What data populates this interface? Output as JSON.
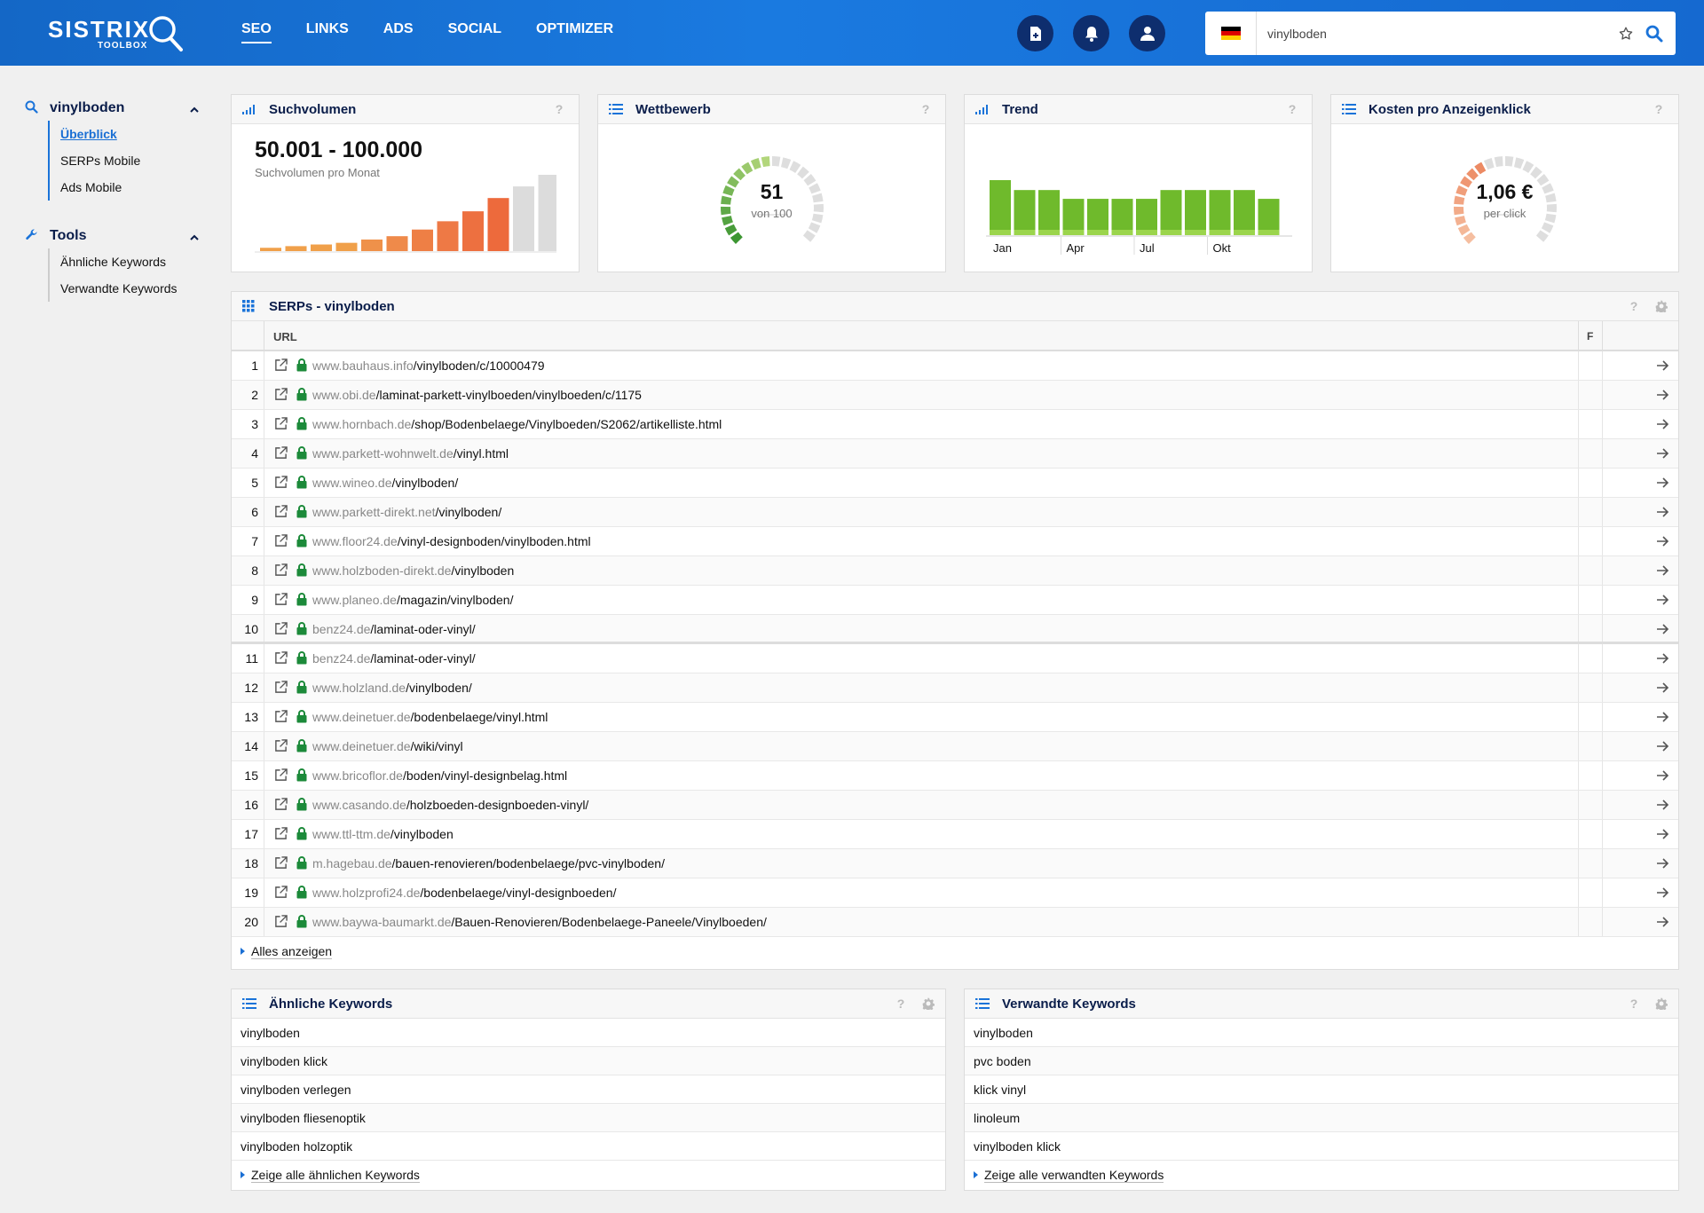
{
  "header": {
    "logo": "SISTRIX",
    "logo_sub": "TOOLBOX",
    "nav": [
      "SEO",
      "LINKS",
      "ADS",
      "SOCIAL",
      "OPTIMIZER"
    ],
    "active_nav": "SEO",
    "search": {
      "value": "vinylboden",
      "country_flag": "de"
    }
  },
  "sidebar": {
    "groups": [
      {
        "title": "vinylboden",
        "icon": "search-icon",
        "items": [
          "Überblick",
          "SERPs Mobile",
          "Ads Mobile"
        ],
        "active": "Überblick"
      },
      {
        "title": "Tools",
        "icon": "wrench-icon",
        "items": [
          "Ähnliche Keywords",
          "Verwandte Keywords"
        ]
      }
    ]
  },
  "widgets": {
    "suchvolumen": {
      "title": "Suchvolumen",
      "value": "50.001 - 100.000",
      "sublabel": "Suchvolumen pro Monat",
      "bar_levels": [
        2,
        3,
        4,
        5,
        7,
        9,
        13,
        18,
        24,
        32,
        39,
        46
      ],
      "bar_colors": [
        "#f0a04a",
        "#f0a04a",
        "#f0a04a",
        "#f0a04a",
        "#ef914a",
        "#ef8a4a",
        "#ee7f45",
        "#ee7945",
        "#ed7040",
        "#ed6a3c",
        "#dcdcdc",
        "#dcdcdc"
      ]
    },
    "wettbewerb": {
      "title": "Wettbewerb",
      "value": "51",
      "sublabel": "von 100",
      "score": 51
    },
    "trend": {
      "title": "Trend",
      "bar_levels": [
        1.0,
        0.82,
        0.82,
        0.66,
        0.66,
        0.66,
        0.66,
        0.82,
        0.82,
        0.82,
        0.82,
        0.66
      ],
      "x_labels": [
        "Jan",
        "Apr",
        "Jul",
        "Okt"
      ]
    },
    "cpc": {
      "title": "Kosten pro Anzeigenklick",
      "value": "1,06 €",
      "sublabel": "per click",
      "fill": 0.42
    }
  },
  "serps": {
    "title": "SERPs - vinylboden",
    "col_url": "URL",
    "col_extra": "F",
    "rows": [
      {
        "rank": "1",
        "domain": "www.bauhaus.info",
        "path": "/vinylboden/c/10000479"
      },
      {
        "rank": "2",
        "domain": "www.obi.de",
        "path": "/laminat-parkett-vinylboeden/vinylboeden/c/1175"
      },
      {
        "rank": "3",
        "domain": "www.hornbach.de",
        "path": "/shop/Bodenbelaege/Vinylboeden/S2062/artikelliste.html"
      },
      {
        "rank": "4",
        "domain": "www.parkett-wohnwelt.de",
        "path": "/vinyl.html"
      },
      {
        "rank": "5",
        "domain": "www.wineo.de",
        "path": "/vinylboden/"
      },
      {
        "rank": "6",
        "domain": "www.parkett-direkt.net",
        "path": "/vinylboden/"
      },
      {
        "rank": "7",
        "domain": "www.floor24.de",
        "path": "/vinyl-designboden/vinylboden.html"
      },
      {
        "rank": "8",
        "domain": "www.holzboden-direkt.de",
        "path": "/vinylboden"
      },
      {
        "rank": "9",
        "domain": "www.planeo.de",
        "path": "/magazin/vinylboden/"
      },
      {
        "rank": "10",
        "domain": "benz24.de",
        "path": "/laminat-oder-vinyl/"
      },
      {
        "rank": "11",
        "domain": "benz24.de",
        "path": "/laminat-oder-vinyl/"
      },
      {
        "rank": "12",
        "domain": "www.holzland.de",
        "path": "/vinylboden/"
      },
      {
        "rank": "13",
        "domain": "www.deinetuer.de",
        "path": "/bodenbelaege/vinyl.html"
      },
      {
        "rank": "14",
        "domain": "www.deinetuer.de",
        "path": "/wiki/vinyl"
      },
      {
        "rank": "15",
        "domain": "www.bricoflor.de",
        "path": "/boden/vinyl-designbelag.html"
      },
      {
        "rank": "16",
        "domain": "www.casando.de",
        "path": "/holzboeden-designboeden-vinyl/"
      },
      {
        "rank": "17",
        "domain": "www.ttl-ttm.de",
        "path": "/vinylboden"
      },
      {
        "rank": "18",
        "domain": "m.hagebau.de",
        "path": "/bauen-renovieren/bodenbelaege/pvc-vinylboden/"
      },
      {
        "rank": "19",
        "domain": "www.holzprofi24.de",
        "path": "/bodenbelaege/vinyl-designboeden/"
      },
      {
        "rank": "20",
        "domain": "www.baywa-baumarkt.de",
        "path": "/Bauen-Renovieren/Bodenbelaege-Paneele/Vinylboeden/"
      }
    ],
    "more_label": "Alles anzeigen"
  },
  "aehnliche": {
    "title": "Ähnliche Keywords",
    "items": [
      "vinylboden",
      "vinylboden klick",
      "vinylboden verlegen",
      "vinylboden fliesenoptik",
      "vinylboden holzoptik"
    ],
    "more_label": "Zeige alle ähnlichen Keywords"
  },
  "verwandte": {
    "title": "Verwandte Keywords",
    "items": [
      "vinylboden",
      "pvc boden",
      "klick vinyl",
      "linoleum",
      "vinylboden klick"
    ],
    "more_label": "Zeige alle verwandten Keywords"
  },
  "colors": {
    "brand": "#1a73d9",
    "dark_navy": "#0a1d4a",
    "header_btn": "#0e2e6e",
    "lock_green": "#1c8a3a"
  }
}
